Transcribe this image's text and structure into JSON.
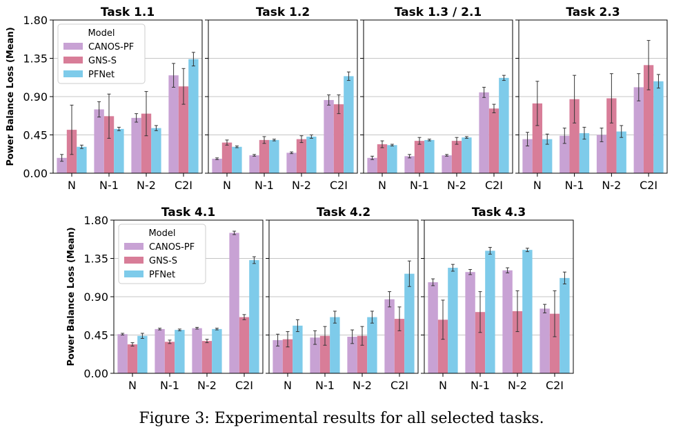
{
  "caption": "Figure 3: Experimental results for all selected tasks.",
  "colors": {
    "CANOS-PF": "#c8a2d4",
    "GNS-S": "#d87d98",
    "PFNet": "#7ecbea",
    "grid": "#b0b0b0",
    "err": "#333333"
  },
  "chart_data": [
    {
      "type": "bar",
      "title": "Task 1.1",
      "ylabel": "Power Balance Loss (Mean)",
      "categories": [
        "N",
        "N-1",
        "N-2",
        "C2I"
      ],
      "ylim": [
        0,
        1.8
      ],
      "yticks": [
        "0.00",
        "0.45",
        "0.90",
        "1.35",
        "1.80"
      ],
      "legend": {
        "title": "Model",
        "labels": [
          "CANOS-PF",
          "GNS-S",
          "PFNet"
        ],
        "position": "top-left"
      },
      "series": [
        {
          "name": "CANOS-PF",
          "values": [
            0.18,
            0.75,
            0.65,
            1.15
          ],
          "errors": [
            0.04,
            0.09,
            0.05,
            0.14
          ]
        },
        {
          "name": "GNS-S",
          "values": [
            0.51,
            0.67,
            0.7,
            1.02
          ],
          "errors": [
            0.29,
            0.26,
            0.26,
            0.21
          ]
        },
        {
          "name": "PFNet",
          "values": [
            0.31,
            0.52,
            0.53,
            1.34
          ],
          "errors": [
            0.02,
            0.02,
            0.03,
            0.08
          ]
        }
      ]
    },
    {
      "type": "bar",
      "title": "Task 1.2",
      "categories": [
        "N",
        "N-1",
        "N-2",
        "C2I"
      ],
      "ylim": [
        0,
        1.8
      ],
      "series": [
        {
          "name": "CANOS-PF",
          "values": [
            0.17,
            0.21,
            0.24,
            0.86
          ],
          "errors": [
            0.01,
            0.01,
            0.01,
            0.06
          ]
        },
        {
          "name": "GNS-S",
          "values": [
            0.36,
            0.39,
            0.4,
            0.81
          ],
          "errors": [
            0.03,
            0.04,
            0.04,
            0.11
          ]
        },
        {
          "name": "PFNet",
          "values": [
            0.31,
            0.39,
            0.43,
            1.14
          ],
          "errors": [
            0.01,
            0.01,
            0.02,
            0.05
          ]
        }
      ]
    },
    {
      "type": "bar",
      "title": "Task 1.3 / 2.1",
      "categories": [
        "N",
        "N-1",
        "N-2",
        "C2I"
      ],
      "ylim": [
        0,
        1.8
      ],
      "series": [
        {
          "name": "CANOS-PF",
          "values": [
            0.18,
            0.2,
            0.21,
            0.95
          ],
          "errors": [
            0.02,
            0.02,
            0.01,
            0.06
          ]
        },
        {
          "name": "GNS-S",
          "values": [
            0.34,
            0.38,
            0.38,
            0.76
          ],
          "errors": [
            0.04,
            0.04,
            0.04,
            0.05
          ]
        },
        {
          "name": "PFNet",
          "values": [
            0.33,
            0.39,
            0.42,
            1.12
          ],
          "errors": [
            0.01,
            0.01,
            0.01,
            0.03
          ]
        }
      ]
    },
    {
      "type": "bar",
      "title": "Task 2.3",
      "categories": [
        "N",
        "N-1",
        "N-2",
        "C2I"
      ],
      "ylim": [
        0,
        1.8
      ],
      "series": [
        {
          "name": "CANOS-PF",
          "values": [
            0.4,
            0.44,
            0.45,
            1.01
          ],
          "errors": [
            0.08,
            0.09,
            0.08,
            0.16
          ]
        },
        {
          "name": "GNS-S",
          "values": [
            0.82,
            0.87,
            0.88,
            1.27
          ],
          "errors": [
            0.26,
            0.28,
            0.29,
            0.29
          ]
        },
        {
          "name": "PFNet",
          "values": [
            0.4,
            0.47,
            0.49,
            1.08
          ],
          "errors": [
            0.06,
            0.07,
            0.07,
            0.08
          ]
        }
      ]
    },
    {
      "type": "bar",
      "title": "Task 4.1",
      "ylabel": "Power Balance Loss (Mean)",
      "categories": [
        "N",
        "N-1",
        "N-2",
        "C2I"
      ],
      "ylim": [
        0,
        1.8
      ],
      "yticks": [
        "0.00",
        "0.45",
        "0.90",
        "1.35",
        "1.80"
      ],
      "legend": {
        "title": "Model",
        "labels": [
          "CANOS-PF",
          "GNS-S",
          "PFNet"
        ],
        "position": "top-left"
      },
      "series": [
        {
          "name": "CANOS-PF",
          "values": [
            0.46,
            0.52,
            0.53,
            1.65
          ],
          "errors": [
            0.01,
            0.01,
            0.01,
            0.02
          ]
        },
        {
          "name": "GNS-S",
          "values": [
            0.34,
            0.37,
            0.38,
            0.66
          ],
          "errors": [
            0.02,
            0.02,
            0.02,
            0.03
          ]
        },
        {
          "name": "PFNet",
          "values": [
            0.44,
            0.51,
            0.52,
            1.33
          ],
          "errors": [
            0.03,
            0.01,
            0.01,
            0.04
          ]
        }
      ]
    },
    {
      "type": "bar",
      "title": "Task 4.2",
      "categories": [
        "N",
        "N-1",
        "N-2",
        "C2I"
      ],
      "ylim": [
        0,
        1.8
      ],
      "series": [
        {
          "name": "CANOS-PF",
          "values": [
            0.39,
            0.42,
            0.43,
            0.87
          ],
          "errors": [
            0.07,
            0.08,
            0.08,
            0.09
          ]
        },
        {
          "name": "GNS-S",
          "values": [
            0.4,
            0.44,
            0.44,
            0.64
          ],
          "errors": [
            0.09,
            0.11,
            0.11,
            0.14
          ]
        },
        {
          "name": "PFNet",
          "values": [
            0.56,
            0.66,
            0.66,
            1.17
          ],
          "errors": [
            0.07,
            0.07,
            0.07,
            0.15
          ]
        }
      ]
    },
    {
      "type": "bar",
      "title": "Task 4.3",
      "categories": [
        "N",
        "N-1",
        "N-2",
        "C2I"
      ],
      "ylim": [
        0,
        1.8
      ],
      "series": [
        {
          "name": "CANOS-PF",
          "values": [
            1.07,
            1.19,
            1.21,
            0.76
          ],
          "errors": [
            0.04,
            0.03,
            0.03,
            0.05
          ]
        },
        {
          "name": "GNS-S",
          "values": [
            0.63,
            0.72,
            0.73,
            0.7
          ],
          "errors": [
            0.23,
            0.24,
            0.24,
            0.27
          ]
        },
        {
          "name": "PFNet",
          "values": [
            1.24,
            1.44,
            1.45,
            1.12
          ],
          "errors": [
            0.04,
            0.04,
            0.02,
            0.07
          ]
        }
      ]
    }
  ]
}
